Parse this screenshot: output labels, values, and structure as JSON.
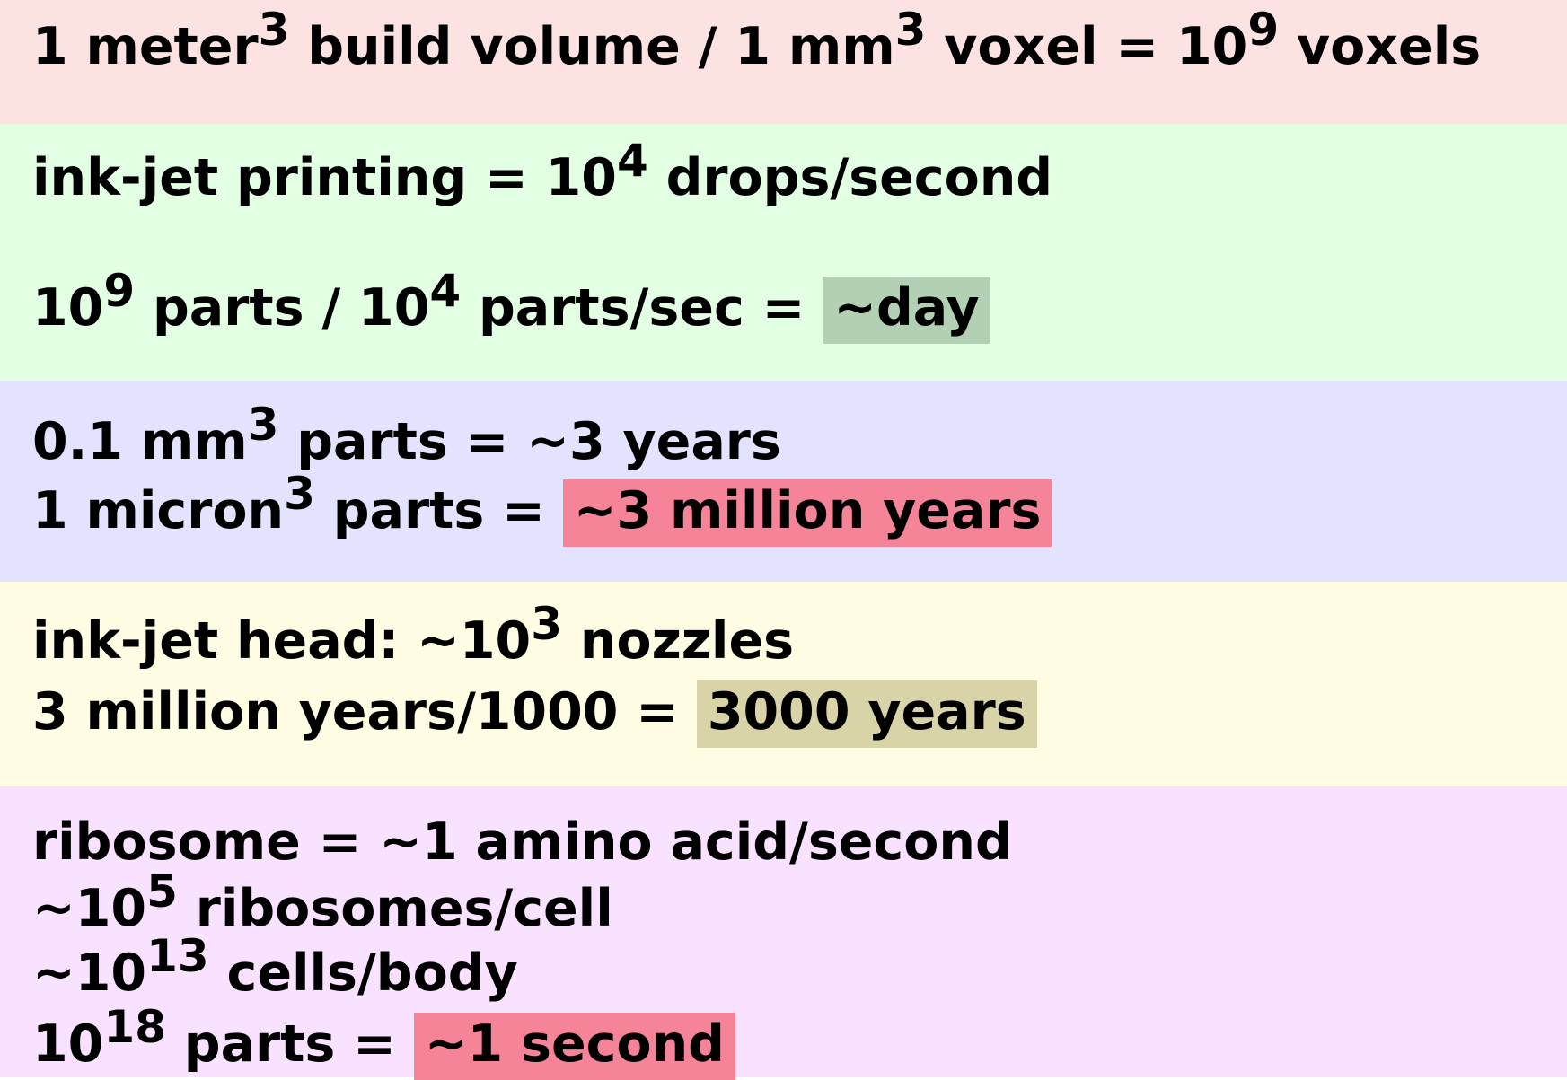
{
  "colors": {
    "band_1": "#fde2e2",
    "band_2": "#e2ffe4",
    "band_3": "#e3e3ff",
    "band_4": "#fefde4",
    "band_5": "#f8e2ff",
    "highlight_green": "#b2d0b3",
    "highlight_red": "#f68499",
    "highlight_olive": "#d8d4a7"
  },
  "voxels": {
    "p1": "1 meter",
    "s1": "3",
    "p2": " build volume / 1 mm",
    "s2": "3",
    "p3": " voxel = 10",
    "s3": "9",
    "p4": " voxels"
  },
  "inkjet": {
    "rate": {
      "p1": "ink-jet printing = 10",
      "s1": "4",
      "p2": " drops/second"
    },
    "time": {
      "p1": "10",
      "s1": "9",
      "p2": " parts / 10",
      "s2": "4",
      "p3": " parts/sec = ",
      "result": "~day"
    }
  },
  "scaling": {
    "mm": {
      "p1": "0.1 mm",
      "s1": "3",
      "p2": " parts = ~3 years"
    },
    "micron": {
      "p1": "1 micron",
      "s1": "3",
      "p2": " parts = ",
      "result": "~3 million years"
    }
  },
  "nozzles": {
    "head": {
      "p1": "ink-jet head: ~10",
      "s1": "3",
      "p2": " nozzles"
    },
    "time": {
      "p1": "3 million years/1000 = ",
      "result": "3000 years"
    }
  },
  "biology": {
    "ribosome": "ribosome = ~1 amino acid/second",
    "per_cell": {
      "p1": "~10",
      "s1": "5",
      "p2": " ribosomes/cell"
    },
    "per_body": {
      "p1": "~10",
      "s1": "13",
      "p2": " cells/body"
    },
    "total": {
      "p1": "10",
      "s1": "18",
      "p2": " parts = ",
      "result": "~1 second"
    }
  }
}
